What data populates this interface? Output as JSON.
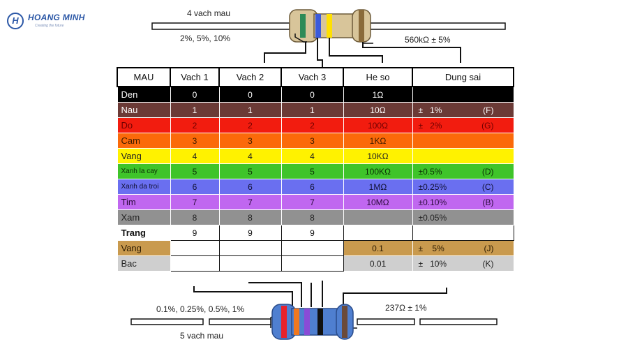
{
  "logo": {
    "mark": "H",
    "name": "HOANG MINH",
    "tagline": "Creating the future"
  },
  "top_resistor": {
    "title": "4 vach mau",
    "left_label": "2%, 5%, 10%",
    "right_label": "560kΩ ± 5%",
    "band_colors": [
      "#2e8b57",
      "#3b5bdb",
      "#ffe000",
      "#8a6b3a"
    ],
    "body_color": "#d8c59a"
  },
  "bottom_resistor": {
    "title": "5 vach mau",
    "left_label": "0.1%, 0.25%, 0.5%, 1%",
    "right_label": "237Ω ± 1%",
    "band_colors": [
      "#e8222a",
      "#f07820",
      "#8a4bd6",
      "#111111",
      "#6b4a3a"
    ],
    "body_color": "#4f7fd0"
  },
  "table": {
    "headers": [
      "MAU",
      "Vach 1",
      "Vach 2",
      "Vach 3",
      "He so",
      "Dung sai"
    ],
    "rows": [
      {
        "name": "Den",
        "v1": "0",
        "v2": "0",
        "v3": "0",
        "mult": "1Ω",
        "tol": "",
        "tol_code": "",
        "bg": "#000000",
        "fg": "#ffffff"
      },
      {
        "name": "Nau",
        "v1": "1",
        "v2": "1",
        "v3": "1",
        "mult": "10Ω",
        "tol": "±   1%",
        "tol_code": "(F)",
        "bg": "#6b3a36",
        "fg": "#ffffff"
      },
      {
        "name": "Do",
        "v1": "2",
        "v2": "2",
        "v3": "2",
        "mult": "100Ω",
        "tol": "±   2%",
        "tol_code": "(G)",
        "bg": "#f21c0f",
        "fg": "#6e0000"
      },
      {
        "name": "Cam",
        "v1": "3",
        "v2": "3",
        "v3": "3",
        "mult": "1KΩ",
        "tol": "",
        "tol_code": "",
        "bg": "#fb6a0a",
        "fg": "#3a1a00"
      },
      {
        "name": "Vang",
        "v1": "4",
        "v2": "4",
        "v3": "4",
        "mult": "10KΩ",
        "tol": "",
        "tol_code": "",
        "bg": "#fff200",
        "fg": "#222222"
      },
      {
        "name": "Xanh la cay",
        "v1": "5",
        "v2": "5",
        "v3": "5",
        "mult": "100KΩ",
        "tol": "±0.5%",
        "tol_code": "(D)",
        "bg": "#3fc42a",
        "fg": "#0b2c05"
      },
      {
        "name": "Xanh da troi",
        "v1": "6",
        "v2": "6",
        "v3": "6",
        "mult": "1MΩ",
        "tol": "±0.25%",
        "tol_code": "(C)",
        "bg": "#6a6ff0",
        "fg": "#111133"
      },
      {
        "name": "Tim",
        "v1": "7",
        "v2": "7",
        "v3": "7",
        "mult": "10MΩ",
        "tol": "±0.10%",
        "tol_code": "(B)",
        "bg": "#c067f0",
        "fg": "#2a0a3a"
      },
      {
        "name": "Xam",
        "v1": "8",
        "v2": "8",
        "v3": "8",
        "mult": "",
        "tol": "±0.05%",
        "tol_code": "",
        "bg": "#919191",
        "fg": "#222222"
      },
      {
        "name": "Trang",
        "v1": "9",
        "v2": "9",
        "v3": "9",
        "mult": "",
        "tol": "",
        "tol_code": "",
        "bg": "#ffffff",
        "fg": "#111111"
      },
      {
        "name": "Vang",
        "v1": "",
        "v2": "",
        "v3": "",
        "mult": "0.1",
        "tol": "±    5%",
        "tol_code": "(J)",
        "bg": "#c99a4e",
        "fg": "#2b1a00"
      },
      {
        "name": "Bac",
        "v1": "",
        "v2": "",
        "v3": "",
        "mult": "0.01",
        "tol": "±   10%",
        "tol_code": "(K)",
        "bg": "#cfcfcf",
        "fg": "#222222"
      }
    ]
  }
}
